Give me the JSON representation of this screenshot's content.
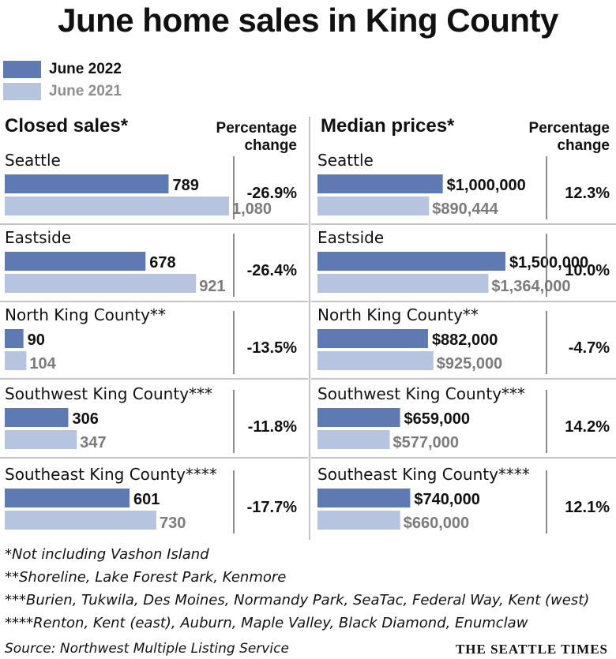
{
  "title": "June home sales in King County",
  "legend": {
    "current": "June 2022",
    "previous": "June 2021"
  },
  "colors": {
    "june_2022": "#5f7ab3",
    "june_2021": "#b7c4e0",
    "divider": "#666666"
  },
  "closed_sales": {
    "heading": "Closed sales*",
    "pct_heading": [
      "Percentage",
      "change"
    ]
  },
  "median_prices": {
    "heading": "Median prices*",
    "pct_heading": [
      "Percentage",
      "change"
    ]
  },
  "chart_data": [
    {
      "type": "bar",
      "title": "Closed sales*",
      "categories": [
        "Seattle",
        "Eastside",
        "North King County**",
        "Southwest King County***",
        "Southeast King County****"
      ],
      "series": [
        {
          "name": "June 2022",
          "values": [
            789,
            678,
            90,
            306,
            601
          ],
          "labels": [
            "789",
            "678",
            "90",
            "306",
            "601"
          ]
        },
        {
          "name": "June 2021",
          "values": [
            1080,
            921,
            104,
            347,
            730
          ],
          "labels": [
            "1,080",
            "921",
            "104",
            "347",
            "730"
          ]
        }
      ],
      "percentage_change": [
        "-26.9%",
        "-26.4%",
        "-13.5%",
        "-11.8%",
        "-17.7%"
      ],
      "xlim": [
        0,
        1080
      ]
    },
    {
      "type": "bar",
      "title": "Median prices*",
      "categories": [
        "Seattle",
        "Eastside",
        "North King County**",
        "Southwest King County***",
        "Southeast King County****"
      ],
      "series": [
        {
          "name": "June 2022",
          "values": [
            1000000,
            1500000,
            882000,
            659000,
            740000
          ],
          "labels": [
            "$1,000,000",
            "$1,500,000",
            "$882,000",
            "$659,000",
            "$740,000"
          ]
        },
        {
          "name": "June 2021",
          "values": [
            890444,
            1364000,
            925000,
            577000,
            660000
          ],
          "labels": [
            "$890,444",
            "$1,364,000",
            "$925,000",
            "$577,000",
            "$660,000"
          ]
        }
      ],
      "percentage_change": [
        "12.3%",
        "10.0%",
        "-4.7%",
        "14.2%",
        "12.1%"
      ],
      "xlim": [
        0,
        1500000
      ]
    }
  ],
  "footnotes": [
    "*Not including Vashon Island",
    "**Shoreline, Lake Forest Park, Kenmore",
    "***Burien, Tukwila, Des Moines, Normandy Park, SeaTac, Federal Way, Kent (west)",
    "****Renton, Kent (east), Auburn, Maple Valley, Black Diamond, Enumclaw"
  ],
  "source": "Source: Northwest Multiple Listing Service",
  "publisher": "THE SEATTLE TIMES"
}
